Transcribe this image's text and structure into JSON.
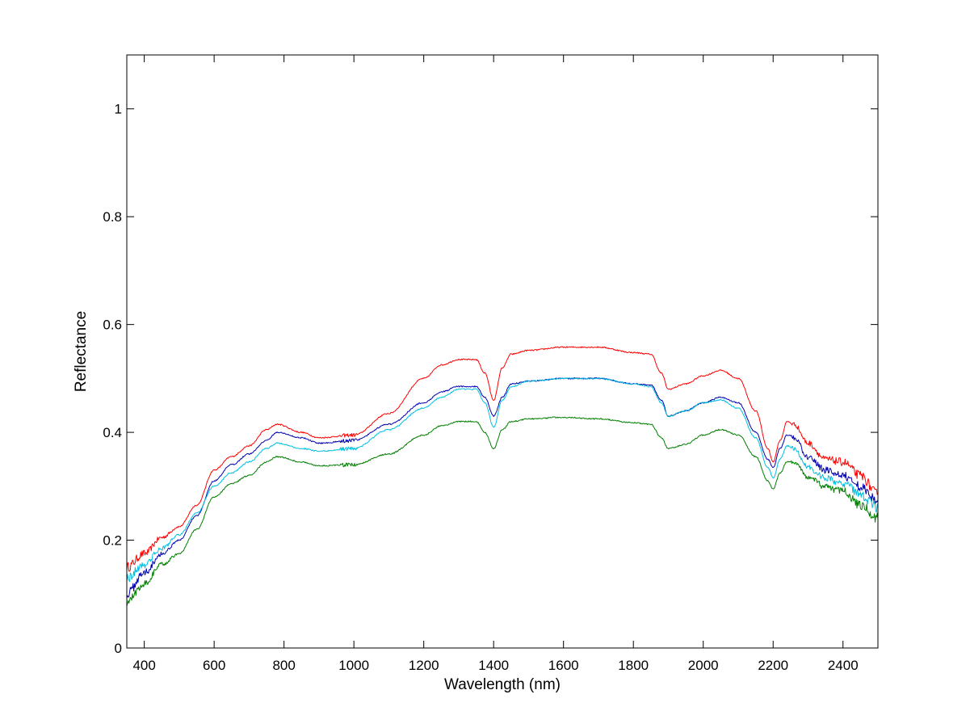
{
  "chart_data": {
    "type": "line",
    "title": "",
    "xlabel": "Wavelength (nm)",
    "ylabel": "Reflectance",
    "xlim": [
      350,
      2500
    ],
    "ylim": [
      0,
      1.1
    ],
    "xticks": [
      400,
      600,
      800,
      1000,
      1200,
      1400,
      1600,
      1800,
      2000,
      2200,
      2400
    ],
    "yticks": [
      0,
      0.2,
      0.4,
      0.6,
      0.8,
      1
    ],
    "ytick_labels": [
      "0",
      "0.2",
      "0.4",
      "0.6",
      "0.8",
      "1"
    ],
    "grid": false,
    "legend": "none",
    "series": [
      {
        "color": "#ff0000",
        "points": [
          [
            350,
            0.15
          ],
          [
            400,
            0.175
          ],
          [
            450,
            0.205
          ],
          [
            500,
            0.225
          ],
          [
            550,
            0.265
          ],
          [
            600,
            0.33
          ],
          [
            650,
            0.355
          ],
          [
            700,
            0.375
          ],
          [
            750,
            0.405
          ],
          [
            780,
            0.415
          ],
          [
            850,
            0.4
          ],
          [
            900,
            0.39
          ],
          [
            1000,
            0.395
          ],
          [
            1100,
            0.435
          ],
          [
            1200,
            0.5
          ],
          [
            1250,
            0.525
          ],
          [
            1300,
            0.535
          ],
          [
            1350,
            0.535
          ],
          [
            1375,
            0.51
          ],
          [
            1400,
            0.46
          ],
          [
            1425,
            0.52
          ],
          [
            1450,
            0.545
          ],
          [
            1500,
            0.552
          ],
          [
            1600,
            0.558
          ],
          [
            1700,
            0.558
          ],
          [
            1800,
            0.548
          ],
          [
            1850,
            0.545
          ],
          [
            1880,
            0.51
          ],
          [
            1900,
            0.48
          ],
          [
            1950,
            0.49
          ],
          [
            2000,
            0.505
          ],
          [
            2050,
            0.515
          ],
          [
            2100,
            0.5
          ],
          [
            2150,
            0.44
          ],
          [
            2185,
            0.37
          ],
          [
            2200,
            0.345
          ],
          [
            2220,
            0.385
          ],
          [
            2240,
            0.42
          ],
          [
            2260,
            0.415
          ],
          [
            2300,
            0.38
          ],
          [
            2350,
            0.35
          ],
          [
            2400,
            0.345
          ],
          [
            2450,
            0.32
          ],
          [
            2500,
            0.285
          ]
        ]
      },
      {
        "color": "#0000b0",
        "points": [
          [
            350,
            0.1
          ],
          [
            400,
            0.14
          ],
          [
            450,
            0.175
          ],
          [
            500,
            0.2
          ],
          [
            550,
            0.245
          ],
          [
            600,
            0.31
          ],
          [
            650,
            0.34
          ],
          [
            700,
            0.36
          ],
          [
            750,
            0.385
          ],
          [
            780,
            0.4
          ],
          [
            850,
            0.39
          ],
          [
            900,
            0.38
          ],
          [
            1000,
            0.385
          ],
          [
            1100,
            0.415
          ],
          [
            1200,
            0.455
          ],
          [
            1250,
            0.475
          ],
          [
            1300,
            0.485
          ],
          [
            1350,
            0.485
          ],
          [
            1375,
            0.465
          ],
          [
            1400,
            0.43
          ],
          [
            1425,
            0.465
          ],
          [
            1450,
            0.49
          ],
          [
            1500,
            0.495
          ],
          [
            1600,
            0.5
          ],
          [
            1700,
            0.5
          ],
          [
            1800,
            0.49
          ],
          [
            1850,
            0.488
          ],
          [
            1880,
            0.46
          ],
          [
            1900,
            0.43
          ],
          [
            1950,
            0.44
          ],
          [
            2000,
            0.455
          ],
          [
            2050,
            0.465
          ],
          [
            2100,
            0.455
          ],
          [
            2150,
            0.4
          ],
          [
            2185,
            0.35
          ],
          [
            2200,
            0.335
          ],
          [
            2220,
            0.37
          ],
          [
            2240,
            0.395
          ],
          [
            2260,
            0.39
          ],
          [
            2300,
            0.355
          ],
          [
            2350,
            0.33
          ],
          [
            2400,
            0.32
          ],
          [
            2450,
            0.3
          ],
          [
            2500,
            0.27
          ]
        ]
      },
      {
        "color": "#00bfdf",
        "points": [
          [
            350,
            0.13
          ],
          [
            400,
            0.155
          ],
          [
            450,
            0.185
          ],
          [
            500,
            0.21
          ],
          [
            550,
            0.25
          ],
          [
            600,
            0.3
          ],
          [
            650,
            0.325
          ],
          [
            700,
            0.345
          ],
          [
            750,
            0.37
          ],
          [
            780,
            0.38
          ],
          [
            850,
            0.37
          ],
          [
            900,
            0.365
          ],
          [
            1000,
            0.37
          ],
          [
            1100,
            0.405
          ],
          [
            1200,
            0.445
          ],
          [
            1250,
            0.465
          ],
          [
            1300,
            0.48
          ],
          [
            1350,
            0.48
          ],
          [
            1375,
            0.455
          ],
          [
            1400,
            0.41
          ],
          [
            1425,
            0.46
          ],
          [
            1450,
            0.485
          ],
          [
            1500,
            0.495
          ],
          [
            1600,
            0.5
          ],
          [
            1700,
            0.5
          ],
          [
            1800,
            0.49
          ],
          [
            1850,
            0.485
          ],
          [
            1880,
            0.455
          ],
          [
            1900,
            0.43
          ],
          [
            1950,
            0.44
          ],
          [
            2000,
            0.455
          ],
          [
            2050,
            0.46
          ],
          [
            2100,
            0.445
          ],
          [
            2150,
            0.39
          ],
          [
            2185,
            0.335
          ],
          [
            2200,
            0.315
          ],
          [
            2220,
            0.35
          ],
          [
            2240,
            0.375
          ],
          [
            2260,
            0.37
          ],
          [
            2300,
            0.335
          ],
          [
            2350,
            0.315
          ],
          [
            2400,
            0.305
          ],
          [
            2450,
            0.285
          ],
          [
            2500,
            0.26
          ]
        ]
      },
      {
        "color": "#007f00",
        "points": [
          [
            350,
            0.085
          ],
          [
            400,
            0.12
          ],
          [
            450,
            0.155
          ],
          [
            500,
            0.175
          ],
          [
            550,
            0.22
          ],
          [
            600,
            0.28
          ],
          [
            650,
            0.305
          ],
          [
            700,
            0.32
          ],
          [
            750,
            0.345
          ],
          [
            780,
            0.355
          ],
          [
            850,
            0.345
          ],
          [
            900,
            0.338
          ],
          [
            1000,
            0.34
          ],
          [
            1100,
            0.36
          ],
          [
            1200,
            0.395
          ],
          [
            1250,
            0.412
          ],
          [
            1300,
            0.42
          ],
          [
            1350,
            0.42
          ],
          [
            1375,
            0.4
          ],
          [
            1400,
            0.37
          ],
          [
            1425,
            0.405
          ],
          [
            1450,
            0.42
          ],
          [
            1500,
            0.425
          ],
          [
            1600,
            0.428
          ],
          [
            1700,
            0.425
          ],
          [
            1800,
            0.418
          ],
          [
            1850,
            0.415
          ],
          [
            1880,
            0.39
          ],
          [
            1900,
            0.37
          ],
          [
            1950,
            0.378
          ],
          [
            2000,
            0.395
          ],
          [
            2050,
            0.405
          ],
          [
            2100,
            0.395
          ],
          [
            2150,
            0.355
          ],
          [
            2185,
            0.31
          ],
          [
            2200,
            0.295
          ],
          [
            2220,
            0.325
          ],
          [
            2240,
            0.345
          ],
          [
            2260,
            0.345
          ],
          [
            2300,
            0.315
          ],
          [
            2350,
            0.3
          ],
          [
            2400,
            0.29
          ],
          [
            2450,
            0.265
          ],
          [
            2500,
            0.24
          ]
        ]
      }
    ]
  }
}
